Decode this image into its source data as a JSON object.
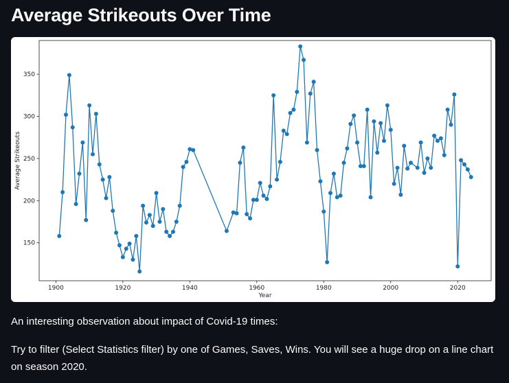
{
  "page": {
    "title": "Average Strikeouts Over Time",
    "note_heading": "An interesting observation about impact of Covid-19 times:",
    "note_body": "Try to filter (Select Statistics filter) by one of Games, Saves, Wins. You will see a huge drop on a line chart on season 2020."
  },
  "chart_data": {
    "type": "line",
    "title": "",
    "xlabel": "Year",
    "ylabel": "Average Strikeouts",
    "xlim": [
      1895,
      2030
    ],
    "ylim": [
      105,
      390
    ],
    "x_ticks": [
      1900,
      1920,
      1940,
      1960,
      1980,
      2000,
      2020
    ],
    "y_ticks": [
      150,
      200,
      250,
      300,
      350
    ],
    "grid": false,
    "line_color": "#1f77b4",
    "series": [
      {
        "x": [
          1901,
          1902,
          1903,
          1904,
          1905,
          1906,
          1907,
          1908,
          1909,
          1910,
          1911,
          1912,
          1913,
          1914,
          1915,
          1916,
          1917,
          1918,
          1919,
          1920,
          1921,
          1922,
          1923,
          1924,
          1925,
          1926,
          1927,
          1928,
          1929,
          1930,
          1931,
          1932,
          1933,
          1934,
          1935,
          1936,
          1937,
          1938,
          1939,
          1940,
          1941,
          1951,
          1953,
          1954,
          1955,
          1956,
          1957,
          1958,
          1959,
          1960,
          1961,
          1962,
          1963,
          1964,
          1965,
          1966,
          1967,
          1968,
          1969,
          1970,
          1971,
          1972,
          1973,
          1974,
          1975,
          1976,
          1977,
          1978,
          1979,
          1980,
          1981,
          1982,
          1983,
          1984,
          1985,
          1986,
          1987,
          1988,
          1989,
          1990,
          1991,
          1992,
          1993,
          1994,
          1995,
          1996,
          1997,
          1998,
          1999,
          2000,
          2001,
          2002,
          2003,
          2004,
          2005,
          2006,
          2008,
          2009,
          2010,
          2011,
          2012,
          2013,
          2014,
          2015,
          2016,
          2017,
          2018,
          2019,
          2020,
          2021,
          2022,
          2023,
          2024
        ],
        "y": [
          158,
          210,
          302,
          349,
          287,
          196,
          232,
          269,
          177,
          313,
          255,
          303,
          243,
          225,
          203,
          228,
          188,
          162,
          147,
          133,
          143,
          149,
          130,
          158,
          116,
          194,
          174,
          183,
          170,
          209,
          175,
          190,
          163,
          158,
          163,
          175,
          194,
          240,
          246,
          261,
          260,
          164,
          186,
          185,
          245,
          263,
          184,
          179,
          201,
          201,
          221,
          206,
          202,
          217,
          325,
          225,
          246,
          283,
          279,
          304,
          308,
          329,
          383,
          367,
          269,
          327,
          341,
          260,
          223,
          187,
          127,
          209,
          232,
          204,
          206,
          245,
          262,
          291,
          301,
          269,
          241,
          241,
          308,
          204,
          294,
          257,
          292,
          271,
          313,
          284,
          220,
          239,
          207,
          265,
          238,
          245,
          239,
          269,
          233,
          250,
          239,
          277,
          271,
          274,
          254,
          308,
          290,
          326,
          122,
          248,
          243,
          237,
          228
        ]
      }
    ]
  }
}
